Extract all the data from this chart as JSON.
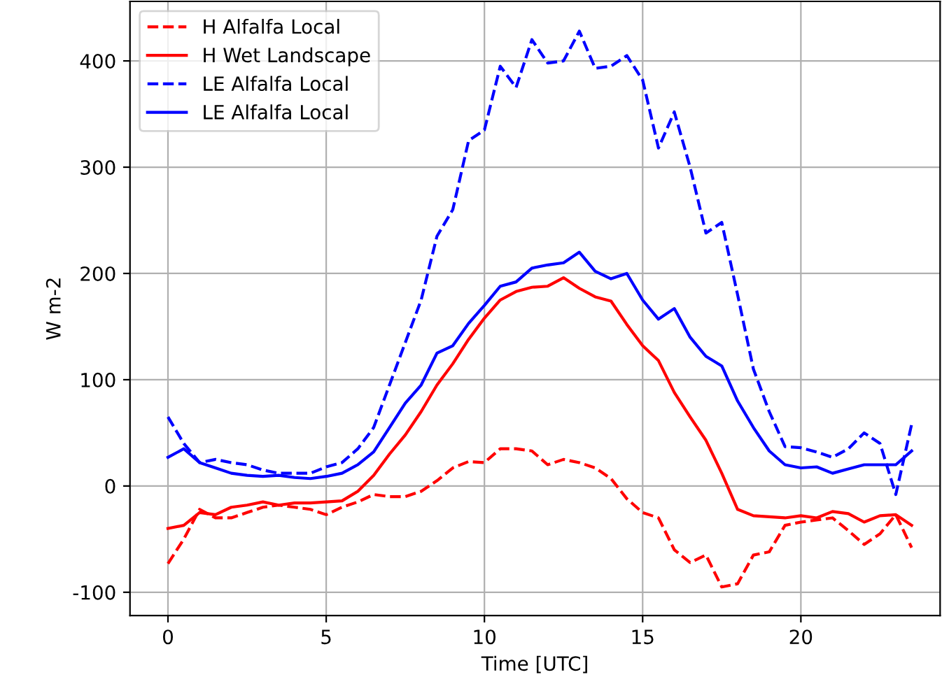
{
  "chart_data": {
    "type": "line",
    "xlabel": "Time [UTC]",
    "ylabel": "W m-2",
    "x": [
      0,
      0.5,
      1,
      1.5,
      2,
      2.5,
      3,
      3.5,
      4,
      4.5,
      5,
      5.5,
      6,
      6.5,
      7,
      7.5,
      8,
      8.5,
      9,
      9.5,
      10,
      10.5,
      11,
      11.5,
      12,
      12.5,
      13,
      13.5,
      14,
      14.5,
      15,
      15.5,
      16,
      16.5,
      17,
      17.5,
      18,
      18.5,
      19,
      19.5,
      20,
      20.5,
      21,
      21.5,
      22,
      22.5,
      23,
      23.5
    ],
    "series": [
      {
        "name": "H Alfalfa Local",
        "color": "#ff0000",
        "line_style": "dashed",
        "values": [
          -73,
          -50,
          -22,
          -30,
          -30,
          -25,
          -20,
          -18,
          -20,
          -22,
          -27,
          -20,
          -15,
          -8,
          -10,
          -10,
          -5,
          5,
          17,
          23,
          22,
          35,
          35,
          33,
          20,
          25,
          22,
          17,
          7,
          -12,
          -25,
          -30,
          -60,
          -72,
          -65,
          -95,
          -92,
          -65,
          -62,
          -37,
          -34,
          -32,
          -30,
          -42,
          -55,
          -45,
          -27,
          -58
        ]
      },
      {
        "name": "H Wet Landscape",
        "color": "#ff0000",
        "line_style": "solid",
        "values": [
          -40,
          -37,
          -25,
          -27,
          -20,
          -18,
          -15,
          -18,
          -16,
          -16,
          -15,
          -14,
          -5,
          10,
          30,
          48,
          70,
          95,
          115,
          138,
          158,
          175,
          183,
          187,
          188,
          196,
          186,
          178,
          174,
          152,
          132,
          118,
          88,
          65,
          43,
          12,
          -22,
          -28,
          -29,
          -30,
          -28,
          -30,
          -24,
          -26,
          -34,
          -28,
          -27,
          -37
        ]
      },
      {
        "name": "LE Alfalfa Local",
        "color": "#0000ff",
        "line_style": "dashed",
        "values": [
          65,
          40,
          22,
          25,
          22,
          20,
          15,
          12,
          12,
          12,
          18,
          22,
          35,
          55,
          95,
          135,
          175,
          235,
          260,
          325,
          335,
          395,
          375,
          420,
          398,
          400,
          428,
          393,
          395,
          405,
          382,
          318,
          352,
          300,
          238,
          248,
          180,
          110,
          70,
          37,
          36,
          32,
          27,
          35,
          50,
          40,
          -8,
          58
        ]
      },
      {
        "name": "LE Alfalfa Local",
        "color": "#0000ff",
        "line_style": "solid",
        "values": [
          27,
          35,
          22,
          17,
          12,
          10,
          9,
          10,
          8,
          7,
          9,
          12,
          20,
          32,
          55,
          78,
          95,
          125,
          132,
          153,
          170,
          188,
          192,
          205,
          208,
          210,
          220,
          202,
          195,
          200,
          175,
          157,
          167,
          140,
          122,
          113,
          80,
          55,
          33,
          20,
          17,
          18,
          12,
          16,
          20,
          20,
          20,
          33
        ]
      }
    ],
    "xlim": [
      -1.2,
      24.4
    ],
    "ylim": [
      -122,
      456
    ],
    "xticks": [
      0,
      5,
      10,
      15,
      20
    ],
    "yticks": [
      -100,
      0,
      100,
      200,
      300,
      400
    ],
    "grid": true,
    "legend": "top left"
  }
}
